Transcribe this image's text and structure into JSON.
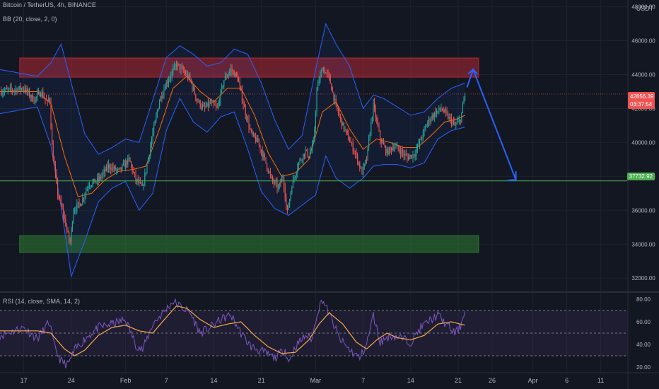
{
  "header": {
    "symbol_line": "Bitcoin / TetherUS, 4h, BINANCE",
    "bb_indicator": "BB (20, close, 2, 0)",
    "rsi_indicator": "RSI (14, close, SMA, 14, 2)",
    "currency": "USDT"
  },
  "price_tags": {
    "last_price": "42856.39",
    "countdown": "03:37:54",
    "support_price": "37732.92"
  },
  "colors": {
    "background": "#131722",
    "up_candle": "#26a69a",
    "down_candle": "#ef5350",
    "bb_band": "#2962ff",
    "bb_basis": "#ff6d00",
    "resistance_zone": "#b22833",
    "demand_zone": "#2e7d32",
    "support_line": "#4caf50",
    "rsi_line": "#7e57c2",
    "rsi_ma": "#f6a94a",
    "arrow": "#2962ff"
  },
  "chart_data": [
    {
      "type": "candlestick",
      "symbol": "Bitcoin / TetherUS",
      "timeframe": "4h",
      "exchange": "BINANCE",
      "y_axis_ticks": [
        32000,
        34000,
        36000,
        38000,
        40000,
        42000,
        44000,
        46000,
        48000
      ],
      "y_axis_labels": [
        "32000.00",
        "34000.00",
        "36000.00",
        "38000.00",
        "40000.00",
        "42000.00",
        "44000.00",
        "46000.00",
        "48000.00"
      ],
      "ylim": [
        31300,
        48400
      ],
      "x_axis_labels": [
        "17",
        "24",
        "Feb",
        "7",
        "14",
        "21",
        "Mar",
        "7",
        "14",
        "21",
        "26",
        "Apr",
        "6",
        "11"
      ],
      "x_axis_label_positions": [
        0,
        7,
        15,
        21,
        28,
        35,
        43,
        50,
        57,
        64,
        69,
        75,
        80,
        85
      ],
      "xlim": [
        -3.5,
        89.0
      ],
      "price_path_keypoints": [
        [
          -3.5,
          43000
        ],
        [
          0,
          43200
        ],
        [
          1.5,
          42500
        ],
        [
          2.5,
          43000
        ],
        [
          3.5,
          42300
        ],
        [
          3.8,
          42800
        ],
        [
          4.2,
          39500
        ],
        [
          5,
          37000
        ],
        [
          6,
          35500
        ],
        [
          6.8,
          34000
        ],
        [
          7.3,
          36000
        ],
        [
          8.5,
          36500
        ],
        [
          9.5,
          37500
        ],
        [
          11,
          37800
        ],
        [
          12.5,
          38600
        ],
        [
          14,
          38300
        ],
        [
          15.5,
          39000
        ],
        [
          16.5,
          37800
        ],
        [
          17.5,
          37300
        ],
        [
          19,
          40500
        ],
        [
          20,
          42500
        ],
        [
          21,
          43500
        ],
        [
          22.5,
          44600
        ],
        [
          23.5,
          44200
        ],
        [
          24.5,
          43700
        ],
        [
          25.5,
          42500
        ],
        [
          26.5,
          42000
        ],
        [
          27.5,
          42300
        ],
        [
          28.5,
          42000
        ],
        [
          29.5,
          43700
        ],
        [
          30.5,
          44300
        ],
        [
          31.5,
          43800
        ],
        [
          32.5,
          42000
        ],
        [
          33.5,
          40500
        ],
        [
          34.5,
          40000
        ],
        [
          35.5,
          39000
        ],
        [
          36.5,
          37800
        ],
        [
          37.5,
          37300
        ],
        [
          38.2,
          38000
        ],
        [
          38.8,
          35800
        ],
        [
          39.5,
          37500
        ],
        [
          40.5,
          38800
        ],
        [
          41.5,
          39500
        ],
        [
          42,
          39200
        ],
        [
          42.7,
          40000
        ],
        [
          43.2,
          43200
        ],
        [
          44,
          44400
        ],
        [
          45,
          43800
        ],
        [
          46,
          42100
        ],
        [
          47,
          41000
        ],
        [
          48,
          40100
        ],
        [
          49,
          39200
        ],
        [
          49.8,
          38200
        ],
        [
          50.5,
          39000
        ],
        [
          51.5,
          42200
        ],
        [
          52.5,
          40200
        ],
        [
          53.5,
          39400
        ],
        [
          54.5,
          39800
        ],
        [
          55.5,
          39500
        ],
        [
          56.5,
          39100
        ],
        [
          57.5,
          39300
        ],
        [
          58.5,
          40200
        ],
        [
          59.5,
          41200
        ],
        [
          60.5,
          41700
        ],
        [
          61.5,
          42000
        ],
        [
          62.5,
          41500
        ],
        [
          63.5,
          41000
        ],
        [
          64.3,
          41300
        ],
        [
          65,
          42856
        ]
      ],
      "bollinger_upper_keypoints": [
        [
          -3.5,
          44300
        ],
        [
          2,
          43900
        ],
        [
          4,
          44700
        ],
        [
          5.5,
          45800
        ],
        [
          7,
          43500
        ],
        [
          9,
          40500
        ],
        [
          11,
          39300
        ],
        [
          13,
          39700
        ],
        [
          15,
          40200
        ],
        [
          17,
          40000
        ],
        [
          19,
          42500
        ],
        [
          21,
          45000
        ],
        [
          23,
          45700
        ],
        [
          25,
          45200
        ],
        [
          27,
          44500
        ],
        [
          29,
          44700
        ],
        [
          31,
          45500
        ],
        [
          33,
          45200
        ],
        [
          35,
          43500
        ],
        [
          37,
          41300
        ],
        [
          39,
          39600
        ],
        [
          41,
          40400
        ],
        [
          43,
          44300
        ],
        [
          44.5,
          47000
        ],
        [
          46,
          45800
        ],
        [
          48,
          44500
        ],
        [
          50,
          42000
        ],
        [
          51.5,
          42800
        ],
        [
          53,
          42600
        ],
        [
          55,
          42100
        ],
        [
          57,
          41600
        ],
        [
          59,
          41800
        ],
        [
          61,
          42600
        ],
        [
          63,
          43200
        ],
        [
          65,
          43500
        ]
      ],
      "bollinger_lower_keypoints": [
        [
          -3.5,
          41700
        ],
        [
          2,
          42100
        ],
        [
          4,
          39800
        ],
        [
          5.5,
          36200
        ],
        [
          7,
          32100
        ],
        [
          9,
          34200
        ],
        [
          11,
          36500
        ],
        [
          13,
          37300
        ],
        [
          15,
          37700
        ],
        [
          17,
          36000
        ],
        [
          19,
          37000
        ],
        [
          21,
          40700
        ],
        [
          23,
          42600
        ],
        [
          25,
          41200
        ],
        [
          27,
          40600
        ],
        [
          29,
          41500
        ],
        [
          31,
          41800
        ],
        [
          33,
          39600
        ],
        [
          35,
          37100
        ],
        [
          37,
          36100
        ],
        [
          39,
          35700
        ],
        [
          41,
          36300
        ],
        [
          43,
          36900
        ],
        [
          44.5,
          39200
        ],
        [
          46,
          37900
        ],
        [
          48,
          37300
        ],
        [
          50,
          37900
        ],
        [
          51.5,
          38600
        ],
        [
          53,
          38700
        ],
        [
          55,
          38700
        ],
        [
          57,
          38500
        ],
        [
          59,
          38800
        ],
        [
          61,
          40200
        ],
        [
          63,
          40700
        ],
        [
          65,
          40900
        ]
      ],
      "bollinger_basis_keypoints": [
        [
          -3.5,
          43000
        ],
        [
          2,
          43000
        ],
        [
          4,
          42300
        ],
        [
          6,
          39200
        ],
        [
          8,
          36800
        ],
        [
          10,
          37000
        ],
        [
          12,
          37800
        ],
        [
          14,
          38300
        ],
        [
          16,
          38400
        ],
        [
          18,
          38600
        ],
        [
          20,
          40800
        ],
        [
          22,
          43200
        ],
        [
          24,
          43900
        ],
        [
          26,
          43000
        ],
        [
          28,
          42400
        ],
        [
          30,
          43200
        ],
        [
          32,
          43200
        ],
        [
          34,
          41600
        ],
        [
          36,
          39400
        ],
        [
          38,
          38000
        ],
        [
          40,
          38200
        ],
        [
          42,
          39000
        ],
        [
          44,
          41800
        ],
        [
          46,
          42400
        ],
        [
          48,
          40800
        ],
        [
          50,
          39600
        ],
        [
          52,
          40200
        ],
        [
          54,
          40000
        ],
        [
          56,
          39700
        ],
        [
          58,
          39700
        ],
        [
          60,
          40400
        ],
        [
          62,
          41200
        ],
        [
          64,
          41400
        ],
        [
          65,
          41600
        ]
      ],
      "zones": [
        {
          "name": "resistance",
          "x": [
            -0.6,
            67.0
          ],
          "y": [
            43850,
            44980
          ]
        },
        {
          "name": "demand",
          "x": [
            -0.6,
            67.0
          ],
          "y": [
            33520,
            34500
          ]
        }
      ],
      "support_level": 37732.92,
      "last_price_level": 42856.39,
      "projection_arrow": [
        [
          65.3,
          43250
        ],
        [
          66.2,
          44300
        ],
        [
          72.5,
          37800
        ]
      ]
    },
    {
      "type": "line",
      "name": "RSI (14, close, SMA, 14, 2)",
      "y_axis_ticks": [
        20,
        40,
        60,
        80
      ],
      "y_axis_labels": [
        "20.00",
        "40.00",
        "60.00",
        "80.00"
      ],
      "ylim": [
        15,
        85
      ],
      "levels": [
        70,
        50,
        30
      ],
      "rsi_keypoints": [
        [
          -3.5,
          48
        ],
        [
          0,
          55
        ],
        [
          2,
          45
        ],
        [
          3.8,
          60
        ],
        [
          4.5,
          38
        ],
        [
          5.5,
          25
        ],
        [
          6.5,
          22
        ],
        [
          7.5,
          35
        ],
        [
          9,
          45
        ],
        [
          11,
          55
        ],
        [
          13,
          58
        ],
        [
          15,
          62
        ],
        [
          16.5,
          40
        ],
        [
          17.5,
          35
        ],
        [
          19,
          58
        ],
        [
          20.5,
          68
        ],
        [
          22,
          78
        ],
        [
          23,
          74
        ],
        [
          24.5,
          68
        ],
        [
          26,
          50
        ],
        [
          27.5,
          55
        ],
        [
          29,
          62
        ],
        [
          30.5,
          66
        ],
        [
          32,
          50
        ],
        [
          33.5,
          38
        ],
        [
          35,
          34
        ],
        [
          37,
          28
        ],
        [
          38.5,
          36
        ],
        [
          39,
          24
        ],
        [
          40,
          38
        ],
        [
          41.5,
          48
        ],
        [
          42.5,
          45
        ],
        [
          43.2,
          68
        ],
        [
          44,
          80
        ],
        [
          45.5,
          60
        ],
        [
          46.5,
          45
        ],
        [
          48,
          35
        ],
        [
          49.5,
          28
        ],
        [
          50.5,
          40
        ],
        [
          51.5,
          66
        ],
        [
          52.5,
          42
        ],
        [
          54,
          48
        ],
        [
          55.5,
          46
        ],
        [
          57,
          42
        ],
        [
          58.5,
          55
        ],
        [
          60,
          62
        ],
        [
          61,
          66
        ],
        [
          62.5,
          56
        ],
        [
          63.5,
          50
        ],
        [
          64.3,
          55
        ],
        [
          65,
          72
        ]
      ],
      "rsi_ma_keypoints": [
        [
          -3.5,
          52
        ],
        [
          2,
          52
        ],
        [
          4,
          50
        ],
        [
          6,
          36
        ],
        [
          7.5,
          30
        ],
        [
          9,
          35
        ],
        [
          11,
          48
        ],
        [
          13,
          55
        ],
        [
          15,
          57
        ],
        [
          17,
          52
        ],
        [
          19,
          50
        ],
        [
          21,
          64
        ],
        [
          22.5,
          74
        ],
        [
          24,
          72
        ],
        [
          26,
          62
        ],
        [
          28,
          55
        ],
        [
          30,
          58
        ],
        [
          32,
          60
        ],
        [
          34,
          48
        ],
        [
          36,
          38
        ],
        [
          38,
          32
        ],
        [
          40,
          33
        ],
        [
          42,
          44
        ],
        [
          43.5,
          58
        ],
        [
          45,
          68
        ],
        [
          47,
          58
        ],
        [
          49,
          42
        ],
        [
          50.5,
          36
        ],
        [
          52,
          44
        ],
        [
          53.5,
          50
        ],
        [
          55,
          46
        ],
        [
          57,
          44
        ],
        [
          59,
          48
        ],
        [
          61,
          58
        ],
        [
          63,
          60
        ],
        [
          65,
          57
        ]
      ]
    }
  ]
}
